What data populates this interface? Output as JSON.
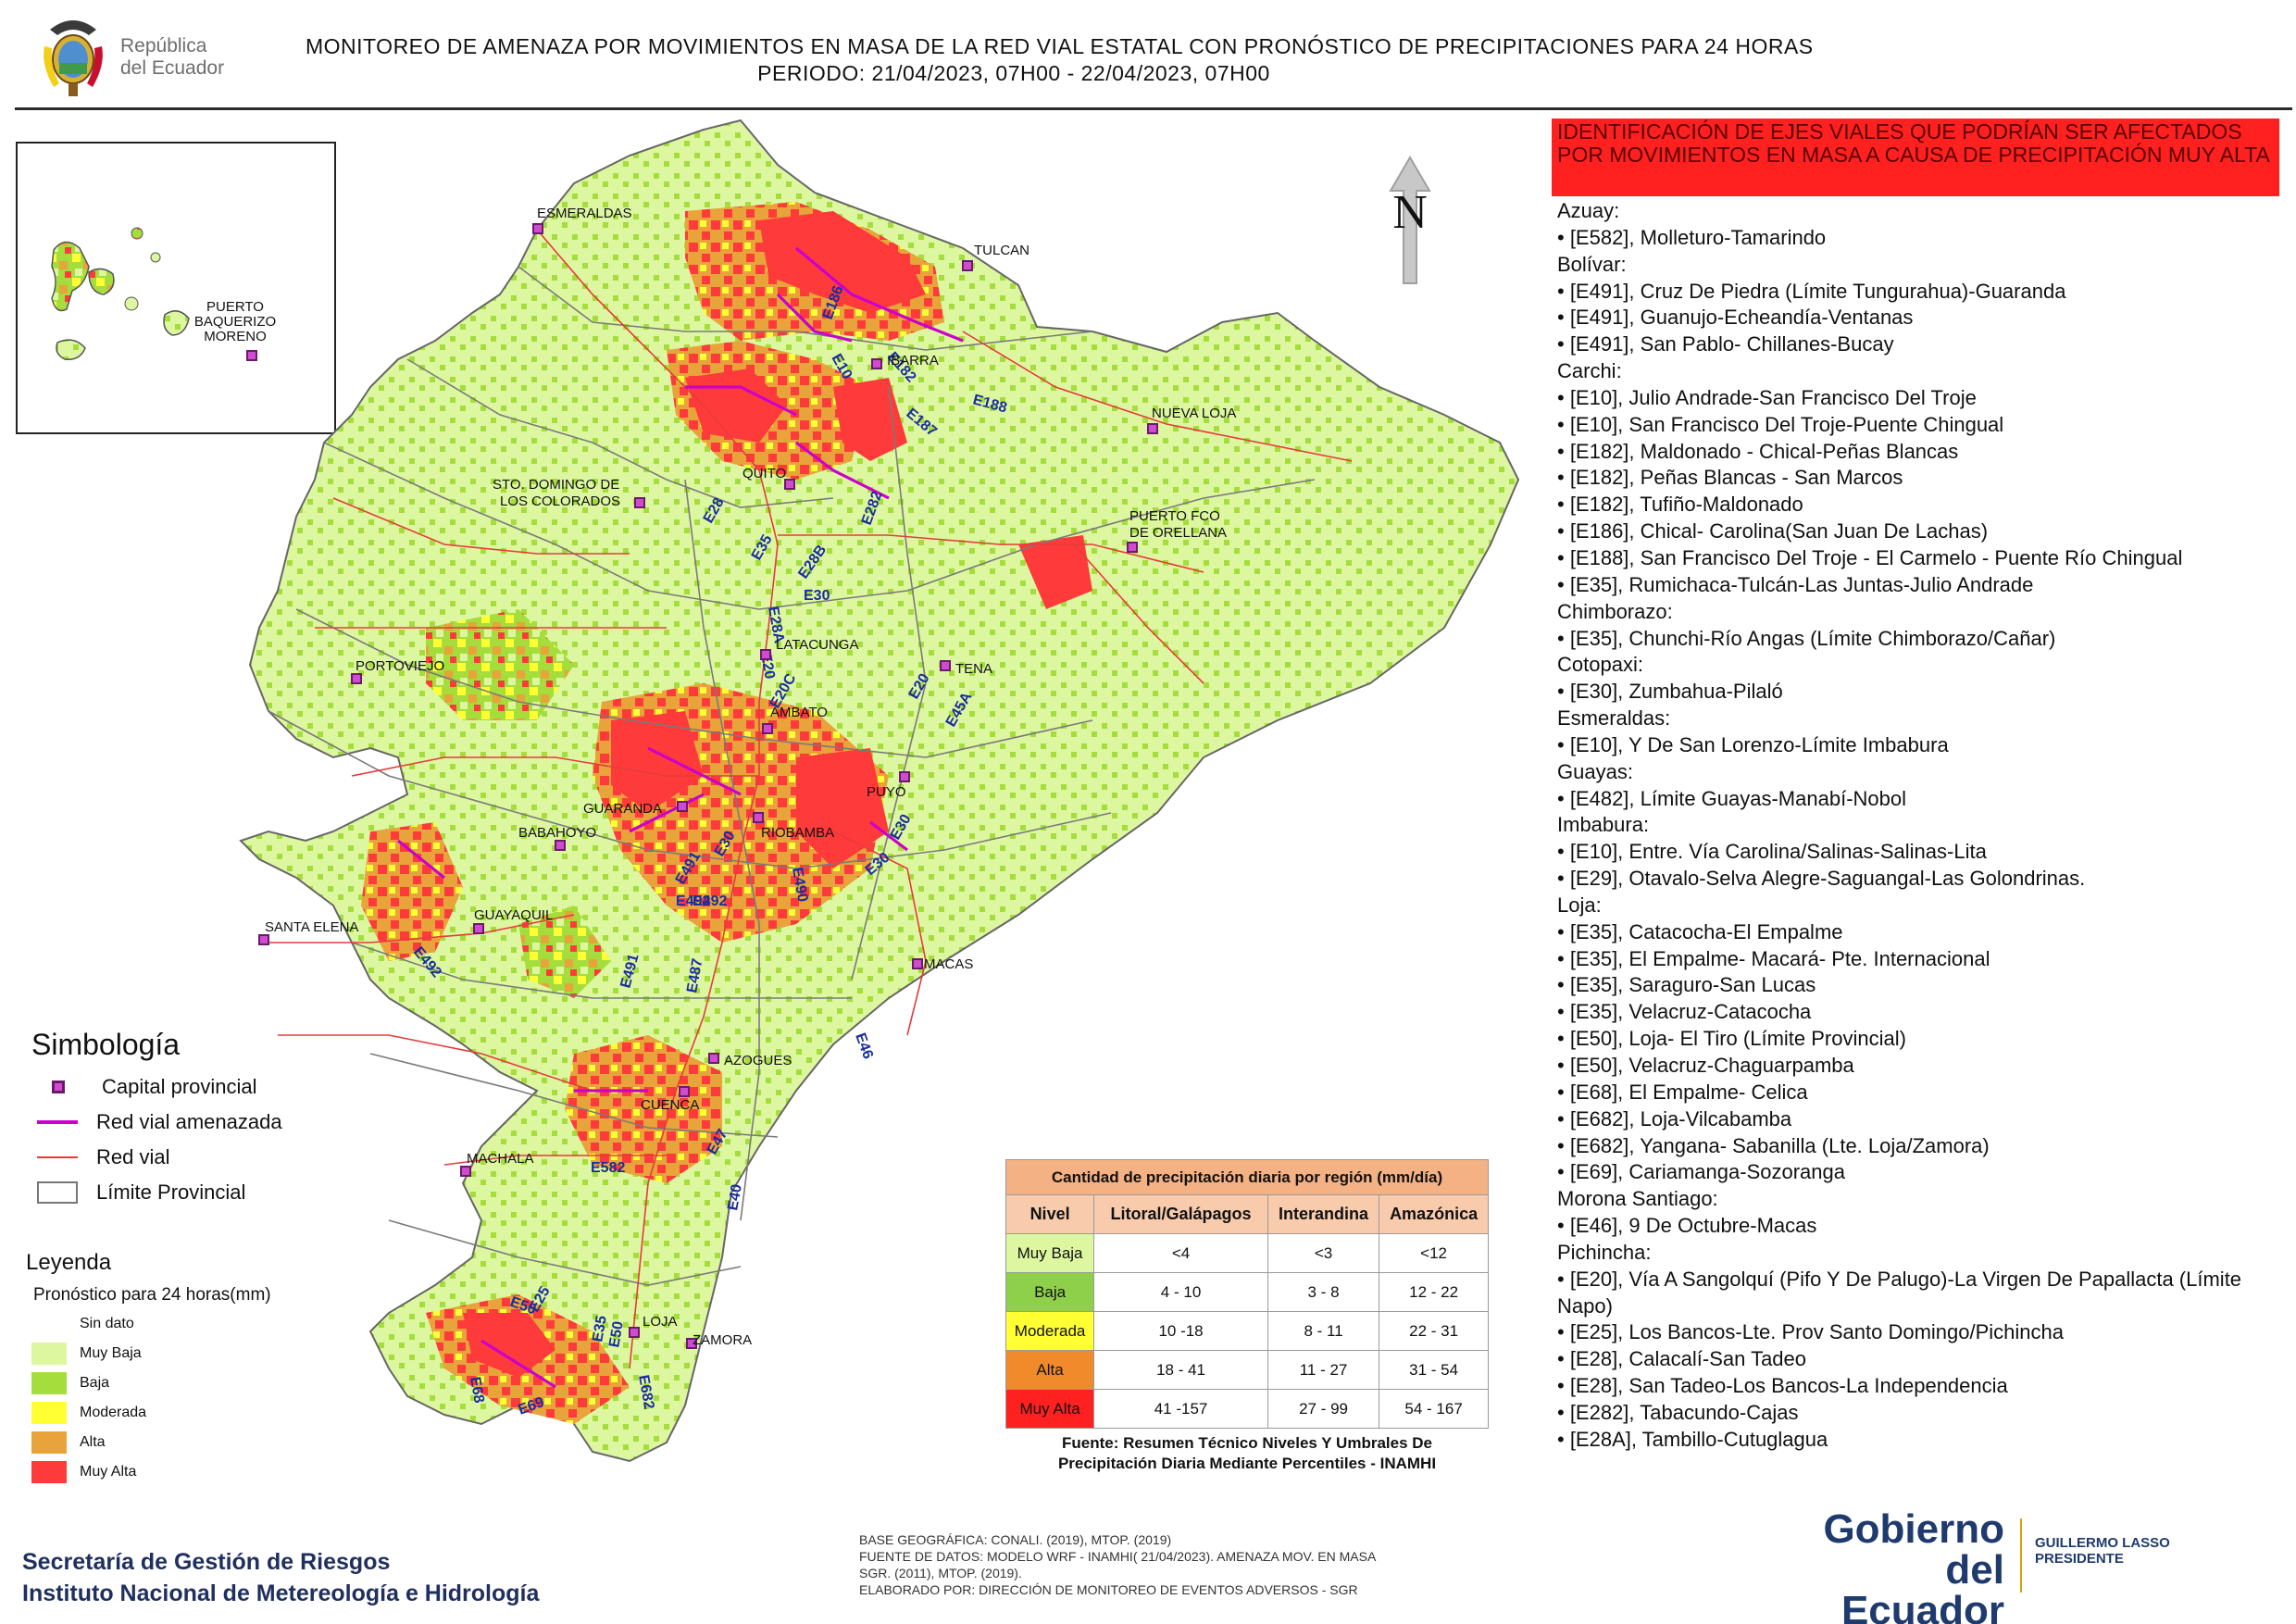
{
  "header": {
    "logo_text_line1": "República",
    "logo_text_line2": "del Ecuador",
    "title_line1": "MONITOREO DE AMENAZA POR MOVIMIENTOS EN MASA DE LA RED VIAL  ESTATAL  CON PRONÓSTICO  DE  PRECIPITACIONES PARA 24 HORAS",
    "title_line2": "PERIODO: 21/04/2023, 07H00 - 22/04/2023, 07H00"
  },
  "map": {
    "north_label": "N",
    "cities": [
      {
        "id": "esmeraldas",
        "name": "ESMERALDAS"
      },
      {
        "id": "tulcan",
        "name": "TULCAN"
      },
      {
        "id": "ibarra",
        "name": "IBARRA"
      },
      {
        "id": "nueva-loja",
        "name": "NUEVA LOJA"
      },
      {
        "id": "quito",
        "name": "QUITO"
      },
      {
        "id": "sto-domingo",
        "name_line1": "STO. DOMINGO DE",
        "name_line2": "LOS COLORADOS"
      },
      {
        "id": "puerto-fco",
        "name_line1": "PUERTO FCO",
        "name_line2": "DE ORELLANA"
      },
      {
        "id": "portoviejo",
        "name": "PORTOVIEJO"
      },
      {
        "id": "latacunga",
        "name": "LATACUNGA"
      },
      {
        "id": "tena",
        "name": "TENA"
      },
      {
        "id": "ambato",
        "name": "AMBATO"
      },
      {
        "id": "puyo",
        "name": "PUYO"
      },
      {
        "id": "guaranda",
        "name": "GUARANDA"
      },
      {
        "id": "babahoyo",
        "name": "BABAHOYO"
      },
      {
        "id": "riobamba",
        "name": "RIOBAMBA"
      },
      {
        "id": "santa-elena",
        "name": "SANTA ELENA"
      },
      {
        "id": "guayaquil",
        "name": "GUAYAQUIL"
      },
      {
        "id": "macas",
        "name": "MACAS"
      },
      {
        "id": "azogues",
        "name": "AZOGUES"
      },
      {
        "id": "cuenca",
        "name": "CUENCA"
      },
      {
        "id": "machala",
        "name": "MACHALA"
      },
      {
        "id": "loja",
        "name": "LOJA"
      },
      {
        "id": "zamora",
        "name": "ZAMORA"
      },
      {
        "id": "puerto-baquerizo",
        "name_line1": "PUERTO",
        "name_line2": "BAQUERIZO",
        "name_line3": "MORENO"
      }
    ],
    "road_labels": [
      "E10",
      "E182",
      "E187",
      "E186",
      "E188",
      "E28",
      "E35",
      "E282",
      "E28B",
      "E30",
      "E28A",
      "E20",
      "E20C",
      "E20",
      "E45A",
      "E491",
      "E30",
      "E30",
      "E492",
      "E490",
      "E30",
      "E492",
      "E491",
      "E487",
      "E492",
      "E46",
      "E47",
      "E582",
      "E40",
      "E50",
      "E35",
      "E50",
      "E68",
      "E69",
      "E682",
      "E25",
      "E40"
    ]
  },
  "simbologia": {
    "title": "Simbología",
    "capital": "Capital provincial",
    "red_amenazada": "Red vial amenazada",
    "red_vial": "Red vial",
    "limite": "Límite Provincial"
  },
  "leyenda": {
    "title": "Leyenda",
    "subtitle": "Pronóstico para 24 horas(mm)",
    "items": [
      {
        "label": "Sin dato",
        "color": "#ffffff"
      },
      {
        "label": " Muy Baja",
        "color": "#ddf7a0"
      },
      {
        "label": "Baja",
        "color": "#a5dd3c"
      },
      {
        "label": "Moderada",
        "color": "#ffff33"
      },
      {
        "label": "Alta",
        "color": "#e8a33a"
      },
      {
        "label": "Muy Alta",
        "color": "#ff3a3a"
      }
    ]
  },
  "precip_table": {
    "title": "Cantidad de precipitación diaria por región (mm/día)",
    "headers": [
      "Nivel",
      "Litoral/Galápagos",
      "Interandina",
      "Amazónica"
    ],
    "rows": [
      {
        "level": "Muy Baja",
        "color": "#ddf7a0",
        "litoral": "<4",
        "interandina": "<3",
        "amazonica": "<12"
      },
      {
        "level": "Baja",
        "color": "#8fd04a",
        "litoral": "4 - 10",
        "interandina": "3 - 8",
        "amazonica": "12 - 22"
      },
      {
        "level": "Moderada",
        "color": "#ffff33",
        "litoral": "10 -18",
        "interandina": "8 - 11",
        "amazonica": "22 - 31"
      },
      {
        "level": "Alta",
        "color": "#f08a2a",
        "litoral": "18 - 41",
        "interandina": "11 - 27",
        "amazonica": "31 - 54"
      },
      {
        "level": "Muy Alta",
        "color": "#ff2020",
        "litoral": "41 -157",
        "interandina": "27 - 99",
        "amazonica": "54 - 167"
      }
    ],
    "source_line1": "Fuente: Resumen Técnico Niveles Y Umbrales De",
    "source_line2": "Precipitación Diaria Mediante Percentiles - INAMHI"
  },
  "footer": {
    "org_line1": "Secretaría de Gestión de Riesgos",
    "org_line2": "Instituto Nacional de Metereología e Hidrología",
    "credit_line1": "BASE GEOGRÁFICA: CONALI. (2019), MTOP. (2019)",
    "credit_line2": "FUENTE DE DATOS: MODELO WRF - INAMHI( 21/04/2023).  AMENAZA MOV. EN MASA",
    "credit_line3": "SGR. (2011), MTOP. (2019).",
    "credit_line4": "ELABORADO POR: DIRECCIÓN DE MONITOREO DE EVENTOS ADVERSOS - SGR",
    "gov_line1": "Gobierno",
    "gov_line2": "del Ecuador",
    "president_line1": "GUILLERMO LASSO",
    "president_line2": "PRESIDENTE"
  },
  "panel": {
    "title": "IDENTIFICACIÓN DE EJES VIALES QUE PODRÍAN SER AFECTADOS POR MOVIMIENTOS EN MASA A CAUSA DE PRECIPITACIÓN MUY ALTA",
    "provinces": [
      {
        "name": "Azuay:",
        "roads": [
          "• [E582], Molleturo-Tamarindo"
        ]
      },
      {
        "name": "Bolívar:",
        "roads": [
          "• [E491], Cruz De Piedra (Límite Tungurahua)-Guaranda",
          "• [E491], Guanujo-Echeandía-Ventanas",
          "• [E491], San Pablo- Chillanes-Bucay"
        ]
      },
      {
        "name": "Carchi:",
        "roads": [
          "• [E10], Julio Andrade-San Francisco Del Troje",
          "• [E10], San Francisco Del Troje-Puente Chingual",
          "• [E182], Maldonado - Chical-Peñas Blancas",
          "• [E182], Peñas Blancas - San Marcos",
          "• [E182], Tufiño-Maldonado",
          "• [E186], Chical- Carolina(San Juan De Lachas)",
          "• [E188], San Francisco Del Troje - El Carmelo - Puente Río Chingual",
          "• [E35], Rumichaca-Tulcán-Las Juntas-Julio Andrade"
        ]
      },
      {
        "name": "Chimborazo:",
        "roads": [
          "• [E35], Chunchi-Río Angas (Límite Chimborazo/Cañar)"
        ]
      },
      {
        "name": "Cotopaxi:",
        "roads": [
          "• [E30], Zumbahua-Pilaló"
        ]
      },
      {
        "name": "Esmeraldas:",
        "roads": [
          "• [E10], Y De San Lorenzo-Límite Imbabura"
        ]
      },
      {
        "name": "Guayas:",
        "roads": [
          "• [E482], Límite Guayas-Manabí-Nobol"
        ]
      },
      {
        "name": "Imbabura:",
        "roads": [
          "• [E10], Entre. Vía Carolina/Salinas-Salinas-Lita",
          "• [E29], Otavalo-Selva Alegre-Saguangal-Las Golondrinas."
        ]
      },
      {
        "name": "Loja:",
        "roads": [
          "• [E35], Catacocha-El Empalme",
          "• [E35], El Empalme- Macará- Pte. Internacional",
          "• [E35], Saraguro-San Lucas",
          "• [E35], Velacruz-Catacocha",
          "• [E50], Loja- El Tiro (Límite Provincial)",
          "• [E50], Velacruz-Chaguarpamba",
          "• [E68], El Empalme- Celica",
          "• [E682], Loja-Vilcabamba",
          "• [E682], Yangana- Sabanilla (Lte. Loja/Zamora)",
          "• [E69], Cariamanga-Sozoranga"
        ]
      },
      {
        "name": "Morona Santiago:",
        "roads": [
          "• [E46], 9 De Octubre-Macas"
        ]
      },
      {
        "name": "Pichincha:",
        "roads": [
          "• [E20], Vía A Sangolquí (Pifo Y De Palugo)-La Virgen De Papallacta (Límite Napo)",
          "• [E25], Los Bancos-Lte. Prov Santo Domingo/Pichincha",
          "• [E28], Calacalí-San Tadeo",
          "• [E28], San Tadeo-Los Bancos-La Independencia",
          "• [E282], Tabacundo-Cajas",
          "• [E28A], Tambillo-Cutuglagua"
        ]
      }
    ]
  },
  "colors": {
    "muy_baja": "#ddf7a0",
    "baja": "#a5dd3c",
    "moderada": "#ffff33",
    "alta": "#e8a33a",
    "muy_alta": "#ff3a3a",
    "red_vial": "#e53b3b",
    "red_amenazada": "#cc00cc",
    "limite": "#777777",
    "road_label": "#1a2d9e"
  }
}
